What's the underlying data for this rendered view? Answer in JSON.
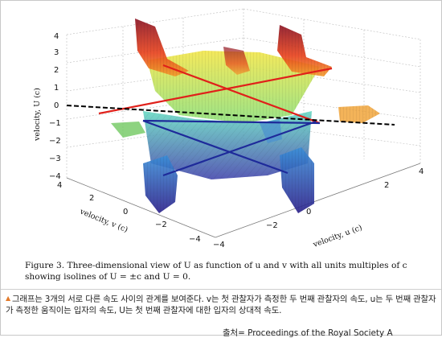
{
  "figure": {
    "z_axis_label": "velocity, U (c)",
    "v_axis_label": "velocity, v (c)",
    "u_axis_label": "velocity, u (c)",
    "z_ticks": [
      "4",
      "3",
      "2",
      "1",
      "0",
      "−1",
      "−2",
      "−3",
      "−4"
    ],
    "v_ticks": [
      "4",
      "2",
      "0",
      "−2",
      "−4"
    ],
    "u_ticks": [
      "4",
      "2",
      "0",
      "−2",
      "−4"
    ],
    "caption_text": "Figure 3. Three-dimensional view of U as function of u and v with all units multiples of c showing isolines of U = ±c and U = 0."
  },
  "note": {
    "bullet": "▲",
    "text": "그래프는 3개의 서로 다른 속도 사이의 관계를 보여준다. v는 첫 관찰자가 측정한 두 번째 관찰자의 속도, u는 두 번째 관찰자가 측정한 움직이는 입자의 속도, U는 첫 번째 관찰자에 대한 입자의 상대적 속도.",
    "source": "출처= Proceedings of the Royal Society A"
  },
  "colors": {
    "surface_top": "#d7e83a",
    "surface_high": "#e0301c",
    "surface_low": "#2b2f9e",
    "surface_mid": "#3fc7a8",
    "isoline_pos": "#e0201a",
    "isoline_neg": "#1e2a9a",
    "isoline_zero": "#000000"
  }
}
